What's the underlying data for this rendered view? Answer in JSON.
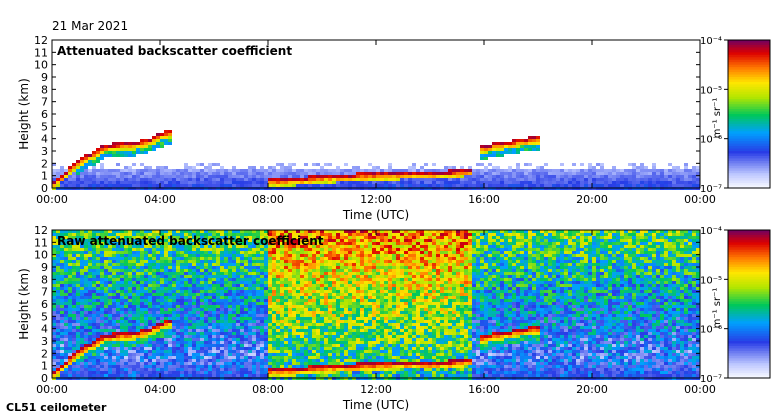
{
  "date": "21 Mar 2021",
  "instrument": "CL51 ceilometer",
  "chart_data": [
    {
      "type": "heatmap",
      "title": "Attenuated backscatter coefficient",
      "xlabel": "Time (UTC)",
      "ylabel": "Height (km)",
      "xticks": [
        "00:00",
        "04:00",
        "08:00",
        "12:00",
        "16:00",
        "20:00",
        "00:00"
      ],
      "xlim": [
        0,
        24
      ],
      "ylim": [
        0,
        12
      ],
      "yticks": [
        0,
        1,
        2,
        3,
        4,
        5,
        6,
        7,
        8,
        9,
        10,
        11,
        12
      ],
      "colorbar": {
        "scale": "log",
        "range": [
          1e-07,
          0.0001
        ],
        "unit": "m⁻¹ sr⁻¹",
        "ticks": [
          "10⁻⁷",
          "10⁻⁶",
          "10⁻⁵",
          "10⁻⁴"
        ]
      },
      "layers": [
        {
          "t": [
            0.0,
            0.5,
            1.0,
            1.5,
            2.0,
            2.5,
            3.0,
            3.5,
            4.0,
            4.4
          ],
          "h": [
            0.3,
            1.2,
            2.2,
            2.8,
            3.4,
            3.5,
            3.6,
            3.8,
            4.3,
            4.6
          ],
          "strength": "high"
        },
        {
          "t": [
            8.0,
            9.0,
            10.0,
            11.0,
            12.0,
            13.0,
            14.0,
            15.0,
            15.5
          ],
          "h": [
            0.6,
            0.7,
            0.9,
            1.0,
            1.1,
            1.2,
            1.2,
            1.3,
            1.5
          ],
          "strength": "high"
        },
        {
          "t": [
            15.8,
            16.2,
            16.6,
            17.0,
            17.4,
            17.8,
            18.0
          ],
          "h": [
            3.2,
            3.4,
            3.6,
            3.7,
            3.9,
            4.0,
            4.0
          ],
          "strength": "high"
        }
      ],
      "background": {
        "surface_top_km": 1.5,
        "aerosol_top_km": 2.0,
        "noise": "low"
      }
    },
    {
      "type": "heatmap",
      "title": "Raw attenuated backscatter coefficient",
      "xlabel": "Time (UTC)",
      "ylabel": "Height (km)",
      "xticks": [
        "00:00",
        "04:00",
        "08:00",
        "12:00",
        "16:00",
        "20:00",
        "00:00"
      ],
      "xlim": [
        0,
        24
      ],
      "ylim": [
        0,
        12
      ],
      "yticks": [
        0,
        1,
        2,
        3,
        4,
        5,
        6,
        7,
        8,
        9,
        10,
        11,
        12
      ],
      "colorbar": {
        "scale": "log",
        "range": [
          1e-07,
          0.0001
        ],
        "unit": "m⁻¹ sr⁻¹",
        "ticks": [
          "10⁻⁷",
          "10⁻⁶",
          "10⁻⁵",
          "10⁻⁴"
        ]
      },
      "layers": [
        {
          "t": [
            0.0,
            0.5,
            1.0,
            1.5,
            2.0,
            2.5,
            3.0,
            3.5,
            4.0,
            4.4
          ],
          "h": [
            0.3,
            1.2,
            2.2,
            2.8,
            3.4,
            3.5,
            3.6,
            3.8,
            4.3,
            4.6
          ],
          "strength": "high"
        },
        {
          "t": [
            8.0,
            9.0,
            10.0,
            11.0,
            12.0,
            13.0,
            14.0,
            15.0,
            15.5
          ],
          "h": [
            0.6,
            0.7,
            0.9,
            1.0,
            1.1,
            1.2,
            1.2,
            1.3,
            1.5
          ],
          "strength": "high"
        },
        {
          "t": [
            15.8,
            16.2,
            16.6,
            17.0,
            17.4,
            17.8,
            18.0
          ],
          "h": [
            3.2,
            3.4,
            3.6,
            3.7,
            3.9,
            4.0,
            4.0
          ],
          "strength": "high"
        }
      ],
      "background": {
        "surface_top_km": 1.5,
        "aerosol_top_km": 2.0,
        "noise": "high",
        "daytime_noise_hours": [
          8,
          15.5
        ]
      }
    }
  ]
}
